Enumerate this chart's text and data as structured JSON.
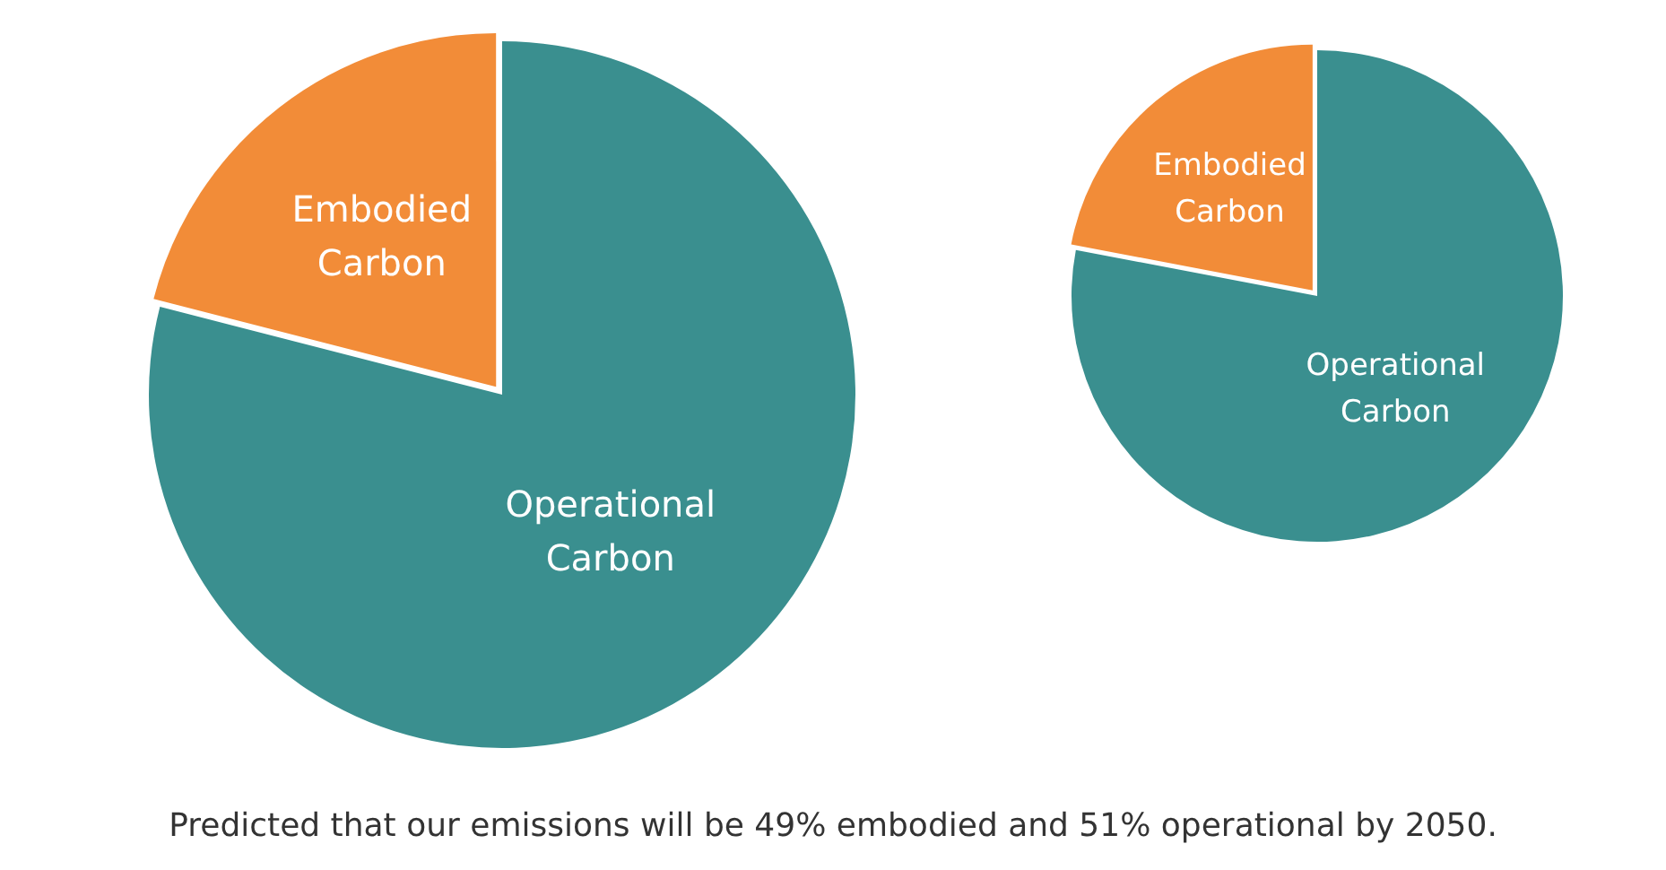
{
  "chart_data": [
    {
      "type": "pie",
      "categories": [
        "Embodied Carbon",
        "Operational Carbon"
      ],
      "values": [
        21,
        79
      ],
      "colors": [
        "#f28c38",
        "#3a8f8f"
      ]
    },
    {
      "type": "pie",
      "categories": [
        "Embodied Carbon",
        "Operational Carbon"
      ],
      "values": [
        22,
        78
      ],
      "colors": [
        "#f28c38",
        "#3a8f8f"
      ],
      "annotations": [
        "Predicted that our emissions will be 49% embodied and 51% operational by 2050."
      ]
    }
  ]
}
